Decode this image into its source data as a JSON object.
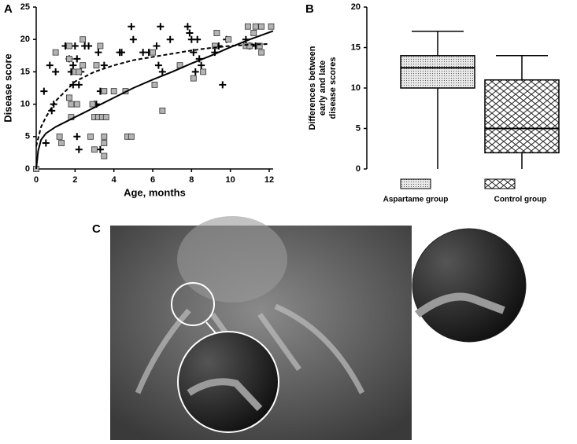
{
  "chart_data": [
    {
      "type": "scatter",
      "panel": "A",
      "xlabel": "Age, months",
      "ylabel": "Disease score",
      "xlim": [
        0,
        12.2
      ],
      "ylim": [
        0,
        25
      ],
      "xticks": [
        0,
        2,
        4,
        6,
        8,
        10,
        12
      ],
      "yticks": [
        0,
        5,
        10,
        15,
        20,
        25
      ],
      "grid": false,
      "series": [
        {
          "kind": "scatter",
          "marker": "plus",
          "color": "#000000",
          "x": [
            0.5,
            0.4,
            0.7,
            0.8,
            0.9,
            1.0,
            1.5,
            1.7,
            1.8,
            1.9,
            1.9,
            2.0,
            2.1,
            2.1,
            2.2,
            2.2,
            2.3,
            2.5,
            2.7,
            3.0,
            3.1,
            3.2,
            3.3,
            3.3,
            3.5,
            4.3,
            4.4,
            4.9,
            5.0,
            5.5,
            5.8,
            6.2,
            6.3,
            6.4,
            6.5,
            6.9,
            7.8,
            7.9,
            8.0,
            8.1,
            8.2,
            8.3,
            8.4,
            8.5,
            9.2,
            9.4,
            9.6,
            9.8,
            10.8,
            11.0,
            11.3
          ],
          "values": [
            4,
            12,
            16,
            9,
            10,
            15,
            19,
            17,
            15,
            16,
            13,
            19,
            17,
            5,
            3,
            13,
            15,
            19,
            19,
            10,
            10,
            18,
            3,
            12,
            16,
            18,
            18,
            22,
            20,
            18,
            18,
            19,
            16,
            22,
            15,
            20,
            22,
            21,
            20,
            18,
            15,
            20,
            17,
            16,
            18,
            19,
            13,
            20,
            20,
            19,
            19
          ]
        },
        {
          "kind": "scatter",
          "marker": "square",
          "color": "#b4b4b4",
          "x": [
            0,
            1.0,
            1.2,
            1.3,
            1.7,
            1.7,
            1.7,
            1.8,
            1.8,
            2.0,
            2.1,
            2.2,
            2.4,
            2.4,
            2.8,
            2.9,
            3.0,
            3.0,
            3.1,
            3.2,
            3.3,
            3.4,
            3.5,
            3.5,
            3.5,
            3.5,
            3.6,
            4.0,
            4.6,
            4.7,
            4.9,
            6.0,
            6.1,
            6.5,
            7.4,
            8.1,
            8.6,
            9.2,
            9.3,
            9.9,
            10.8,
            10.9,
            11.0,
            11.2,
            11.3,
            11.5,
            11.6,
            11.6,
            12.1
          ],
          "values": [
            0,
            18,
            5,
            4,
            19,
            17,
            11,
            10,
            8,
            15,
            10,
            15,
            16,
            20,
            5,
            10,
            3,
            8,
            16,
            8,
            19,
            8,
            12,
            5,
            4,
            2,
            8,
            12,
            12,
            5,
            5,
            18,
            13,
            9,
            16,
            14,
            15,
            19,
            21,
            20,
            19,
            22,
            19,
            21,
            22,
            19,
            22,
            18,
            22
          ]
        },
        {
          "kind": "line",
          "style": "solid",
          "color": "#000000",
          "x": [
            0,
            0.1,
            0.25,
            0.5,
            1,
            2,
            3,
            4,
            5,
            6,
            7,
            8,
            9,
            10,
            11,
            12.2
          ],
          "values": [
            0,
            2.8,
            4.5,
            5.5,
            6.5,
            8,
            9.5,
            11,
            12.5,
            13.8,
            15,
            16.3,
            17.5,
            18.8,
            20,
            21.3
          ]
        },
        {
          "kind": "line",
          "style": "dashed",
          "color": "#000000",
          "x": [
            0,
            0.25,
            0.5,
            1,
            2,
            3,
            4,
            5,
            6,
            7,
            8,
            9,
            10,
            11,
            12
          ],
          "values": [
            3.5,
            6.5,
            8,
            10.5,
            13.5,
            15,
            16,
            16.8,
            17.3,
            17.8,
            18.3,
            18.7,
            19,
            19.2,
            19.3
          ]
        }
      ]
    },
    {
      "type": "box",
      "panel": "B",
      "ylabel": [
        "Differences between",
        "early and late",
        "disease scores"
      ],
      "ylim": [
        0,
        20
      ],
      "yticks": [
        0,
        5,
        10,
        15,
        20
      ],
      "grid": false,
      "categories": [
        "Aspartame group",
        "Control group"
      ],
      "patterns": [
        "dots",
        "diamonds"
      ],
      "boxes": [
        {
          "min": 0,
          "q1": 10,
          "median": 12.5,
          "q3": 14,
          "max": 17
        },
        {
          "min": 0,
          "q1": 2,
          "median": 5,
          "q3": 11,
          "max": 14
        }
      ]
    }
  ],
  "image_panel": {
    "label": "C"
  }
}
